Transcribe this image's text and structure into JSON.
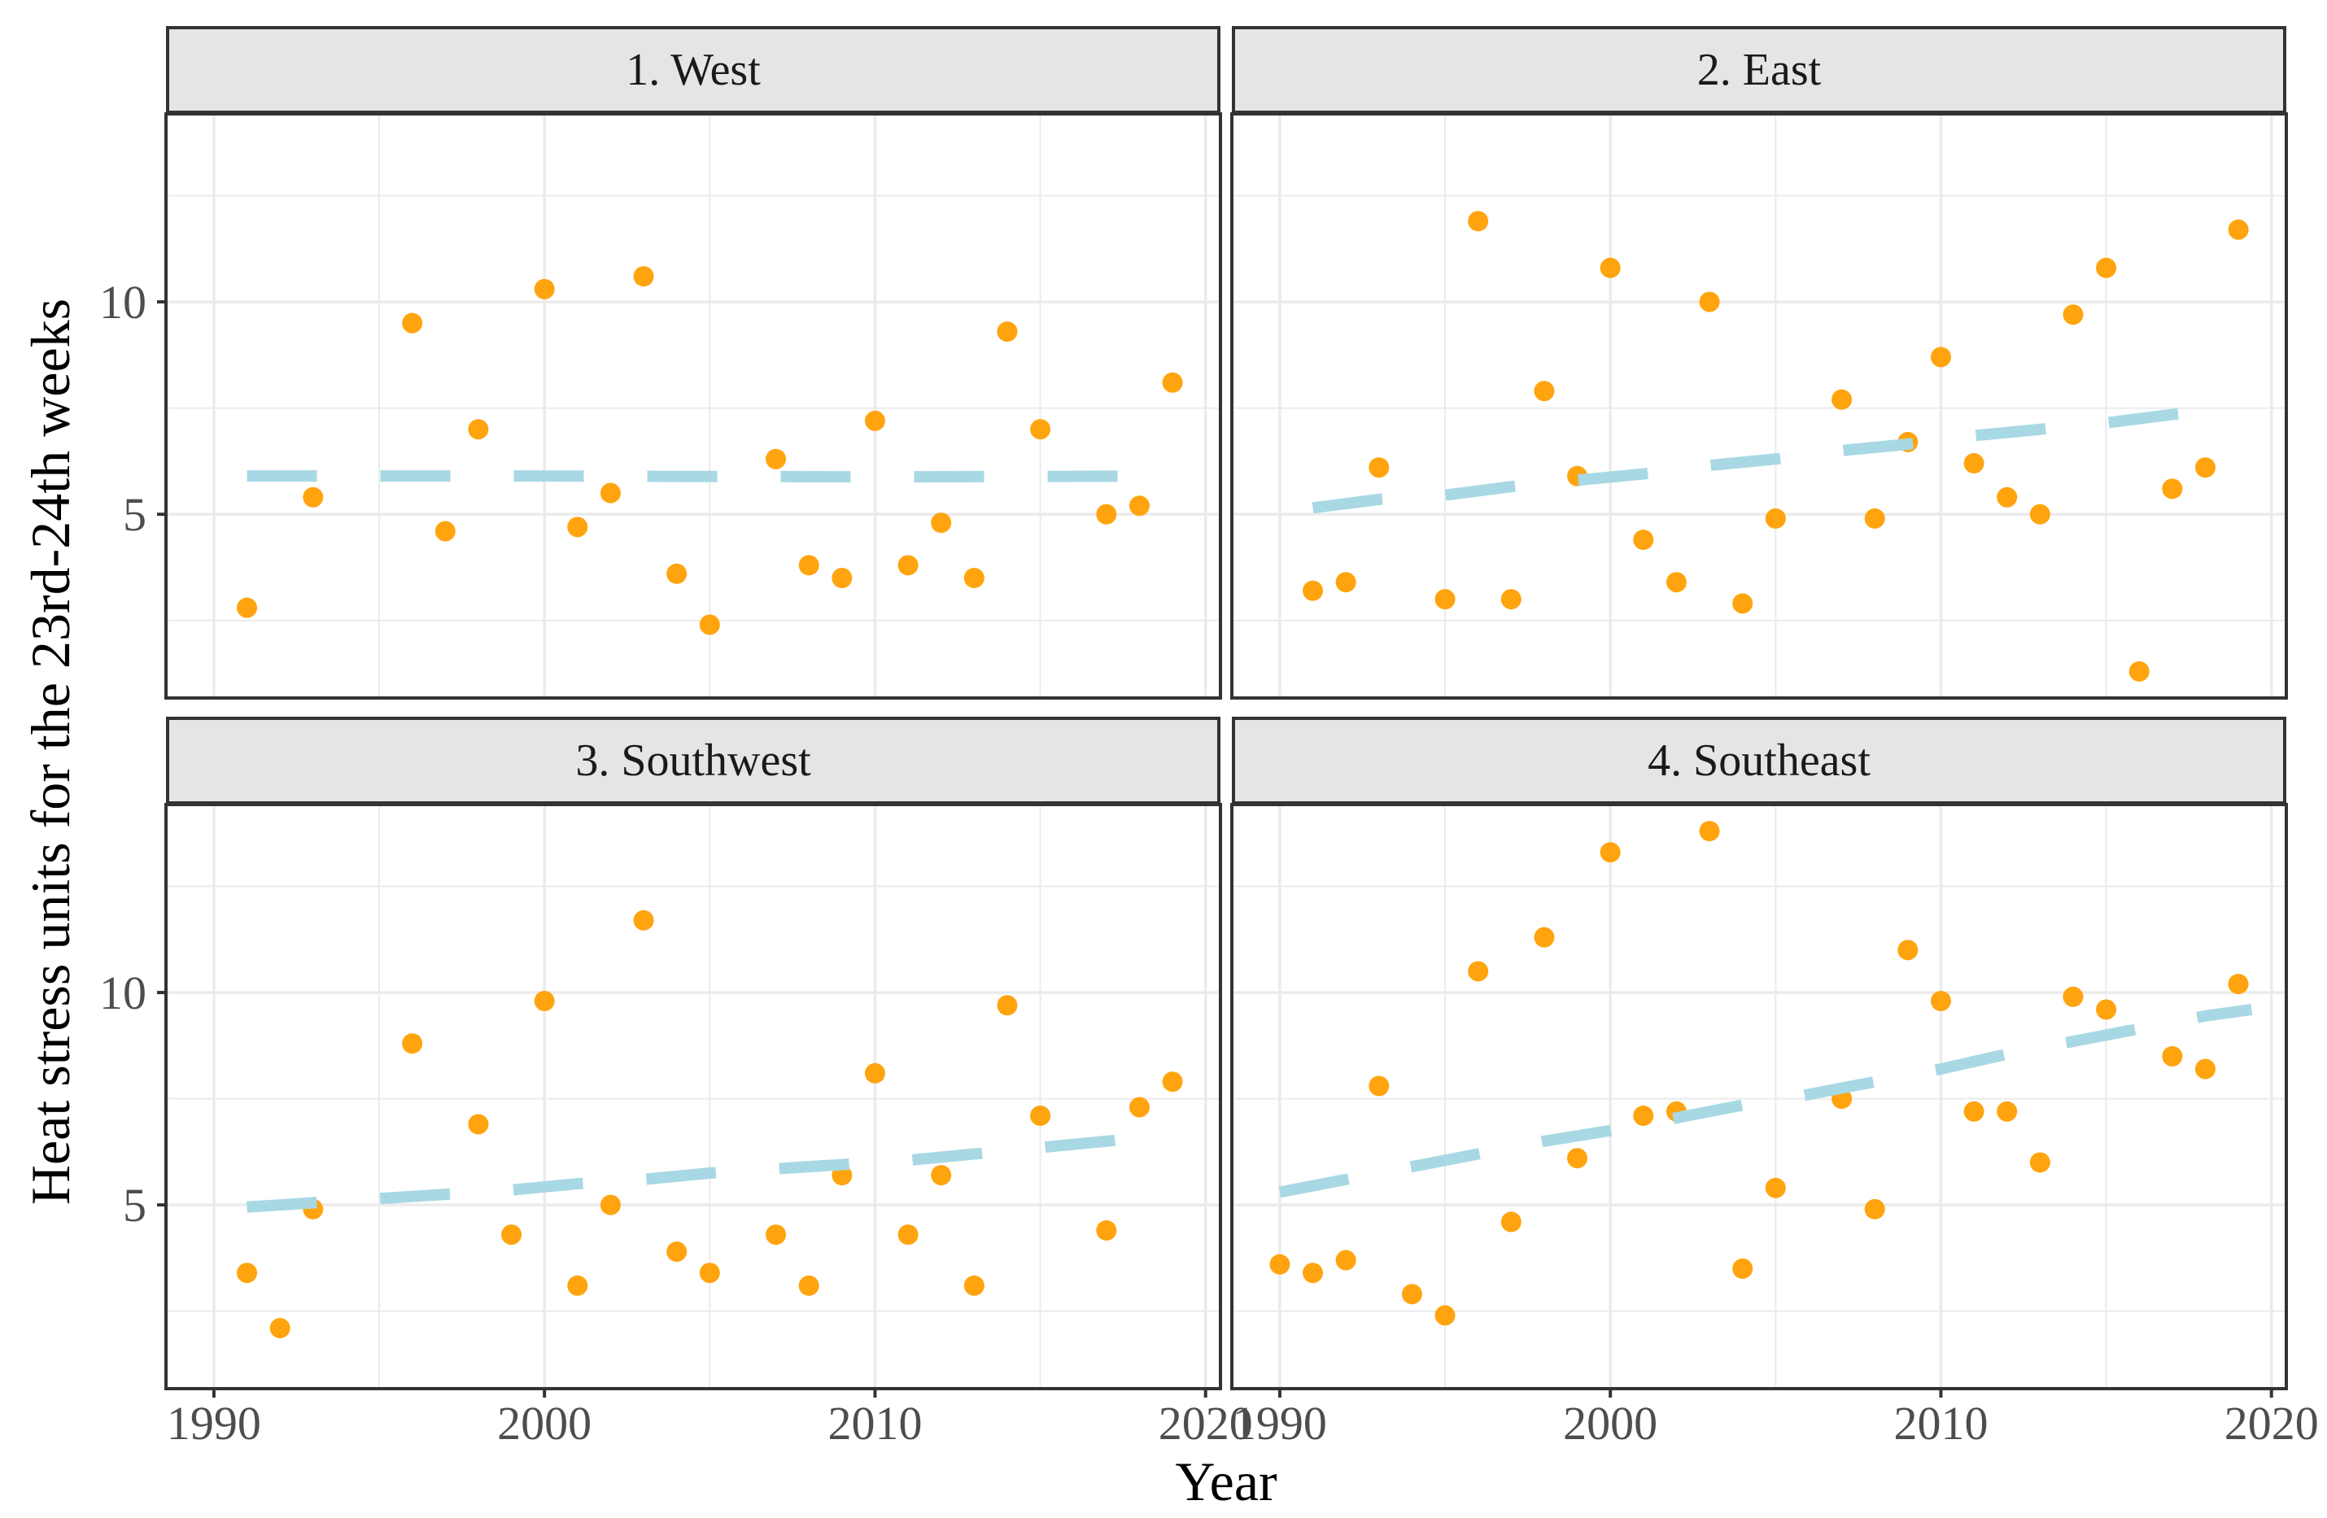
{
  "chart_data": {
    "type": "scatter",
    "title": "",
    "xlabel": "Year",
    "ylabel": "Heat stress units for the 23rd-24th weeks",
    "x_domain": [
      1988.55,
      2020.45
    ],
    "y_domain": [
      0.675,
      14.425
    ],
    "x_ticks": [
      1990,
      2000,
      2010,
      2020
    ],
    "x_minor": [
      1995,
      2005,
      2015
    ],
    "y_ticks": [
      5,
      10
    ],
    "y_minor": [
      2.5,
      7.5,
      12.5
    ],
    "grid_on": true,
    "legend": "none",
    "point_color": "#FFA40E",
    "trend_color": "#A8D8E4",
    "panel_border_color": "#333333",
    "grid_color": "#ebebeb",
    "tick_label_color": "#4d4d4d",
    "strip_bg_color": "#e5e5e5",
    "facets": [
      {
        "label": "1. West",
        "points": [
          [
            1991,
            2.8
          ],
          [
            1993,
            5.4
          ],
          [
            1996,
            9.5
          ],
          [
            1997,
            4.6
          ],
          [
            1998,
            7.0
          ],
          [
            2000,
            10.3
          ],
          [
            2001,
            4.7
          ],
          [
            2002,
            5.5
          ],
          [
            2003,
            10.6
          ],
          [
            2004,
            3.6
          ],
          [
            2005,
            2.4
          ],
          [
            2007,
            6.3
          ],
          [
            2008,
            3.8
          ],
          [
            2009,
            3.5
          ],
          [
            2010,
            7.2
          ],
          [
            2011,
            3.8
          ],
          [
            2012,
            4.8
          ],
          [
            2013,
            3.5
          ],
          [
            2014,
            9.3
          ],
          [
            2015,
            7.0
          ],
          [
            2017,
            5.0
          ],
          [
            2018,
            5.2
          ],
          [
            2019,
            8.1
          ]
        ],
        "trend": [
          [
            1991,
            5.9
          ],
          [
            2000,
            5.9
          ],
          [
            2010,
            5.88
          ],
          [
            2019,
            5.9
          ]
        ]
      },
      {
        "label": "2. East",
        "points": [
          [
            1991,
            3.2
          ],
          [
            1992,
            3.4
          ],
          [
            1993,
            6.1
          ],
          [
            1995,
            3.0
          ],
          [
            1996,
            11.9
          ],
          [
            1997,
            3.0
          ],
          [
            1998,
            7.9
          ],
          [
            1999,
            5.9
          ],
          [
            2000,
            10.8
          ],
          [
            2001,
            4.4
          ],
          [
            2002,
            3.4
          ],
          [
            2003,
            10.0
          ],
          [
            2004,
            2.9
          ],
          [
            2005,
            4.9
          ],
          [
            2007,
            7.7
          ],
          [
            2008,
            4.9
          ],
          [
            2009,
            6.7
          ],
          [
            2010,
            8.7
          ],
          [
            2011,
            6.2
          ],
          [
            2012,
            5.4
          ],
          [
            2013,
            5.0
          ],
          [
            2014,
            9.7
          ],
          [
            2015,
            10.8
          ],
          [
            2016,
            1.3
          ],
          [
            2017,
            5.6
          ],
          [
            2018,
            6.1
          ],
          [
            2019,
            11.7
          ]
        ],
        "trend": [
          [
            1991,
            5.15
          ],
          [
            1993,
            5.35
          ],
          [
            1995,
            5.45
          ],
          [
            1997,
            5.65
          ],
          [
            1999,
            5.8
          ],
          [
            2001,
            5.95
          ],
          [
            2003,
            6.15
          ],
          [
            2005,
            6.3
          ],
          [
            2007,
            6.5
          ],
          [
            2009,
            6.65
          ],
          [
            2011,
            6.85
          ],
          [
            2013,
            7.0
          ],
          [
            2015,
            7.15
          ],
          [
            2017,
            7.35
          ],
          [
            2019,
            7.5
          ]
        ],
        "trend_note": "rising"
      },
      {
        "label": "3. Southwest",
        "points": [
          [
            1991,
            3.4
          ],
          [
            1992,
            2.1
          ],
          [
            1993,
            4.9
          ],
          [
            1996,
            8.8
          ],
          [
            1998,
            6.9
          ],
          [
            1999,
            4.3
          ],
          [
            2000,
            9.8
          ],
          [
            2001,
            3.1
          ],
          [
            2002,
            5.0
          ],
          [
            2003,
            11.7
          ],
          [
            2004,
            3.9
          ],
          [
            2005,
            3.4
          ],
          [
            2007,
            4.3
          ],
          [
            2008,
            3.1
          ],
          [
            2009,
            5.7
          ],
          [
            2010,
            8.1
          ],
          [
            2011,
            4.3
          ],
          [
            2012,
            5.7
          ],
          [
            2013,
            3.1
          ],
          [
            2014,
            9.7
          ],
          [
            2015,
            7.1
          ],
          [
            2017,
            4.4
          ],
          [
            2018,
            7.3
          ],
          [
            2019,
            7.9
          ]
        ],
        "trend": [
          [
            1991,
            4.95
          ],
          [
            1993,
            5.05
          ],
          [
            1995,
            5.15
          ],
          [
            1997,
            5.25
          ],
          [
            1999,
            5.35
          ],
          [
            2001,
            5.5
          ],
          [
            2003,
            5.6
          ],
          [
            2005,
            5.75
          ],
          [
            2007,
            5.85
          ],
          [
            2009,
            5.95
          ],
          [
            2011,
            6.05
          ],
          [
            2013,
            6.2
          ],
          [
            2015,
            6.35
          ],
          [
            2017,
            6.5
          ],
          [
            2019,
            6.65
          ]
        ]
      },
      {
        "label": "4. Southeast",
        "points": [
          [
            1990,
            3.6
          ],
          [
            1991,
            3.4
          ],
          [
            1992,
            3.7
          ],
          [
            1993,
            7.8
          ],
          [
            1994,
            2.9
          ],
          [
            1995,
            2.4
          ],
          [
            1996,
            10.5
          ],
          [
            1997,
            4.6
          ],
          [
            1998,
            11.3
          ],
          [
            1999,
            6.1
          ],
          [
            2000,
            13.3
          ],
          [
            2001,
            7.1
          ],
          [
            2002,
            7.2
          ],
          [
            2003,
            13.8
          ],
          [
            2004,
            3.5
          ],
          [
            2005,
            5.4
          ],
          [
            2007,
            7.5
          ],
          [
            2008,
            4.9
          ],
          [
            2009,
            11.0
          ],
          [
            2010,
            9.8
          ],
          [
            2011,
            7.2
          ],
          [
            2012,
            7.2
          ],
          [
            2013,
            6.0
          ],
          [
            2014,
            9.9
          ],
          [
            2015,
            9.6
          ],
          [
            2017,
            8.5
          ],
          [
            2018,
            8.2
          ],
          [
            2019,
            10.2
          ]
        ],
        "trend": [
          [
            1990,
            5.3
          ],
          [
            1992,
            5.6
          ],
          [
            1994,
            5.9
          ],
          [
            1996,
            6.2
          ],
          [
            1998,
            6.5
          ],
          [
            2000,
            6.75
          ],
          [
            2002,
            7.05
          ],
          [
            2004,
            7.35
          ],
          [
            2006,
            7.6
          ],
          [
            2008,
            7.9
          ],
          [
            2010,
            8.2
          ],
          [
            2012,
            8.55
          ],
          [
            2014,
            8.85
          ],
          [
            2016,
            9.15
          ],
          [
            2018,
            9.45
          ],
          [
            2019.4,
            9.6
          ]
        ]
      }
    ]
  }
}
